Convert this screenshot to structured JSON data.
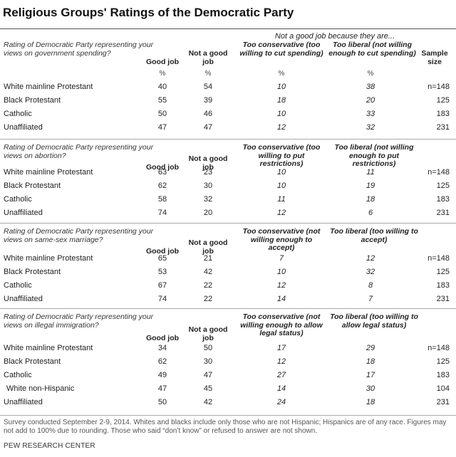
{
  "title": "Religious Groups' Ratings of the Democratic Party",
  "super_header": "Not a good job because they are...",
  "columns": {
    "good_job": "Good job",
    "not_good_job": "Not a good job",
    "sample_size": "Sample size",
    "percent_sign": "%"
  },
  "sections": [
    {
      "question": "Rating of Democratic Party representing your views on government spending?",
      "too_conservative": "Too conservative (too willing to cut spending)",
      "too_liberal": "Too liberal (not willing enough to cut spending)",
      "rows": [
        {
          "group": "White mainline Protestant",
          "good": "40",
          "not_good": "54",
          "too_cons": "10",
          "too_lib": "38",
          "n": "n=148"
        },
        {
          "group": "Black Protestant",
          "good": "55",
          "not_good": "39",
          "too_cons": "18",
          "too_lib": "20",
          "n": "125"
        },
        {
          "group": "Catholic",
          "good": "50",
          "not_good": "46",
          "too_cons": "10",
          "too_lib": "33",
          "n": "183"
        },
        {
          "group": "Unaffiliated",
          "good": "47",
          "not_good": "47",
          "too_cons": "12",
          "too_lib": "32",
          "n": "231"
        }
      ]
    },
    {
      "question": "Rating of Democratic Party representing your views on abortion?",
      "too_conservative": "Too conservative (too willing to put restrictions)",
      "too_liberal": "Too liberal (not willing enough to put restrictions)",
      "rows": [
        {
          "group": "White mainline Protestant",
          "good": "63",
          "not_good": "23",
          "too_cons": "10",
          "too_lib": "11",
          "n": "n=148"
        },
        {
          "group": "Black Protestant",
          "good": "62",
          "not_good": "30",
          "too_cons": "10",
          "too_lib": "19",
          "n": "125"
        },
        {
          "group": "Catholic",
          "good": "58",
          "not_good": "32",
          "too_cons": "11",
          "too_lib": "18",
          "n": "183"
        },
        {
          "group": "Unaffiliated",
          "good": "74",
          "not_good": "20",
          "too_cons": "12",
          "too_lib": "6",
          "n": "231"
        }
      ]
    },
    {
      "question": "Rating of Democratic Party representing your views on same-sex marriage?",
      "too_conservative": "Too conservative (not willing enough to accept)",
      "too_liberal": "Too liberal (too willing to accept)",
      "rows": [
        {
          "group": "White mainline Protestant",
          "good": "65",
          "not_good": "21",
          "too_cons": "7",
          "too_lib": "12",
          "n": "n=148"
        },
        {
          "group": "Black Protestant",
          "good": "53",
          "not_good": "42",
          "too_cons": "10",
          "too_lib": "32",
          "n": "125"
        },
        {
          "group": "Catholic",
          "good": "67",
          "not_good": "22",
          "too_cons": "12",
          "too_lib": "8",
          "n": "183"
        },
        {
          "group": "Unaffiliated",
          "good": "74",
          "not_good": "22",
          "too_cons": "14",
          "too_lib": "7",
          "n": "231"
        }
      ]
    },
    {
      "question": "Rating of Democratic Party representing your views on illegal immigration?",
      "too_conservative": "Too conservative (not willing enough to allow legal status)",
      "too_liberal": "Too liberal (too willing to allow legal status)",
      "rows": [
        {
          "group": "White mainline Protestant",
          "good": "34",
          "not_good": "50",
          "too_cons": "17",
          "too_lib": "29",
          "n": "n=148"
        },
        {
          "group": "Black Protestant",
          "good": "62",
          "not_good": "30",
          "too_cons": "12",
          "too_lib": "18",
          "n": "125"
        },
        {
          "group": "Catholic",
          "good": "49",
          "not_good": "47",
          "too_cons": "27",
          "too_lib": "17",
          "n": "183"
        },
        {
          "group": "White non-Hispanic",
          "good": "47",
          "not_good": "45",
          "too_cons": "14",
          "too_lib": "30",
          "n": "104"
        },
        {
          "group": "Unaffiliated",
          "good": "50",
          "not_good": "42",
          "too_cons": "24",
          "too_lib": "18",
          "n": "231"
        }
      ]
    }
  ],
  "note": "Survey conducted September 2-9, 2014. Whites and blacks include only those who are not Hispanic; Hispanics are of any race. Figures may not add to 100% due to rounding. Those who said “don’t know” or refused to answer are not shown.",
  "source": "PEW RESEARCH CENTER"
}
